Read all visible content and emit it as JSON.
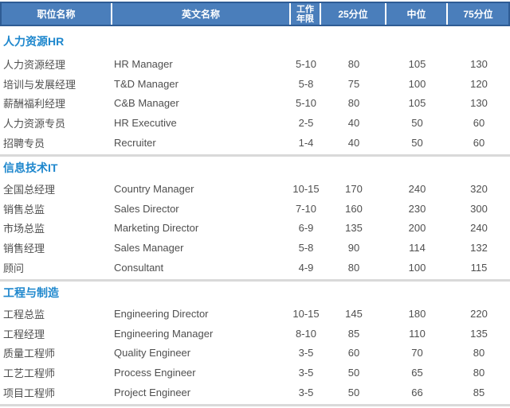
{
  "header": {
    "columns": [
      "职位名称",
      "英文名称",
      "工作年限",
      "25分位",
      "中位",
      "75分位"
    ]
  },
  "sections": [
    {
      "title": "人力资源HR",
      "rows": [
        [
          "人力资源经理",
          "HR Manager",
          "5-10",
          "80",
          "105",
          "130"
        ],
        [
          "培训与发展经理",
          "T&D Manager",
          "5-8",
          "75",
          "100",
          "120"
        ],
        [
          "薪酬福利经理",
          "C&B Manager",
          "5-10",
          "80",
          "105",
          "130"
        ],
        [
          "人力资源专员",
          "HR Executive",
          "2-5",
          "40",
          "50",
          "60"
        ],
        [
          "招聘专员",
          "Recruiter",
          "1-4",
          "40",
          "50",
          "60"
        ]
      ]
    },
    {
      "title": "信息技术IT",
      "rows": [
        [
          "全国总经理",
          "Country Manager",
          "10-15",
          "170",
          "240",
          "320"
        ],
        [
          "销售总监",
          "Sales Director",
          "7-10",
          "160",
          "230",
          "300"
        ],
        [
          "市场总监",
          "Marketing Director",
          "6-9",
          "135",
          "200",
          "240"
        ],
        [
          "销售经理",
          "Sales Manager",
          "5-8",
          "90",
          "114",
          "132"
        ],
        [
          "顾问",
          "Consultant",
          "4-9",
          "80",
          "100",
          "115"
        ]
      ]
    },
    {
      "title": "工程与制造",
      "rows": [
        [
          "工程总监",
          "Engineering Director",
          "10-15",
          "145",
          "180",
          "220"
        ],
        [
          "工程经理",
          "Engineering Manager",
          "8-10",
          "85",
          "110",
          "135"
        ],
        [
          "质量工程师",
          "Quality Engineer",
          "3-5",
          "60",
          "70",
          "80"
        ],
        [
          "工艺工程师",
          "Process Engineer",
          "3-5",
          "50",
          "65",
          "80"
        ],
        [
          "项目工程师",
          "Project Engineer",
          "3-5",
          "50",
          "66",
          "85"
        ]
      ]
    }
  ],
  "colors": {
    "header_bg": "#4a7ebb",
    "header_border": "#2e5c94",
    "section_title": "#1e87cd",
    "body_text": "#4f4f4f",
    "divider": "#d9d9d9"
  }
}
